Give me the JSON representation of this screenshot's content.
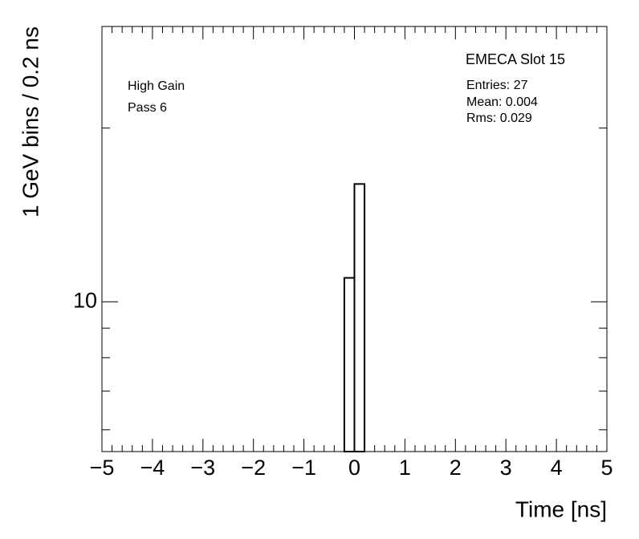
{
  "chart_data": {
    "type": "histogram",
    "title": "EMECA Slot 15",
    "annotations": [
      "High Gain",
      "Pass 6"
    ],
    "stats": [
      "Entries: 27",
      "Mean: 0.004",
      "Rms: 0.029"
    ],
    "x_label": "Time [ns]",
    "y_label": "1 GeV bins / 0.2 ns",
    "bins": [
      -0.2,
      0,
      0.2
    ],
    "counts": [
      11,
      16
    ],
    "color": "#000000",
    "log_y": true,
    "xlim": [
      -5,
      5
    ],
    "ylim": [
      5.5,
      30
    ],
    "xticks": [
      {
        "value": -5,
        "label": "−5"
      },
      {
        "value": -4,
        "label": "−4"
      },
      {
        "value": -3,
        "label": "−3"
      },
      {
        "value": -2,
        "label": "−2"
      },
      {
        "value": -1,
        "label": "−1"
      },
      0,
      1,
      2,
      3,
      4,
      5
    ],
    "yticks": [
      10
    ],
    "yticks_minor": [
      6,
      7,
      8,
      9,
      20
    ]
  }
}
